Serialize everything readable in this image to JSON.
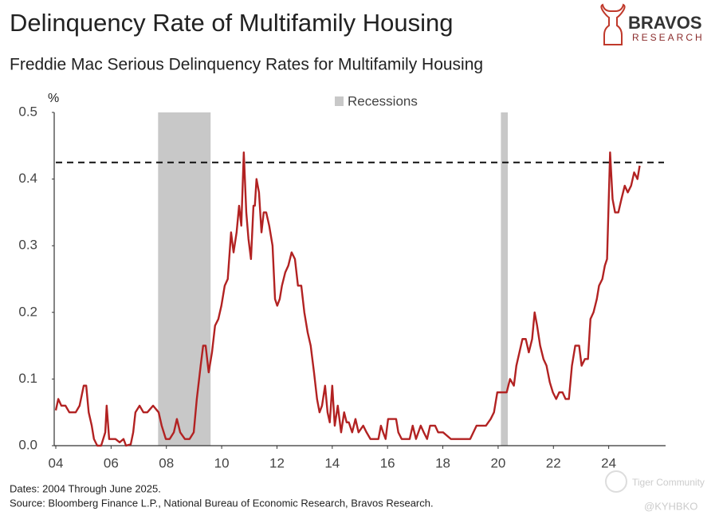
{
  "chart_data": {
    "type": "line",
    "title": "Delinquency Rate of Multifamily Housing",
    "subtitle": "Freddie Mac Serious Delinquency Rates for Multifamily Housing",
    "y_label": "%",
    "legend_label": "Recessions",
    "recession_color": "#c8c8c8",
    "recessions": [
      {
        "start": 2007.7,
        "end": 2009.6
      },
      {
        "start": 2020.1,
        "end": 2020.35
      }
    ],
    "reference_line": {
      "value": 0.425,
      "style": "dashed"
    },
    "footnote": "Dates: 2004 Through June 2025.",
    "source": "Source: Bloomberg Finance L.P., National Bureau of Economic Research, Bravos Research.",
    "brand": "BRAVOS",
    "brand_sub": "RESEARCH",
    "watermark": "Tiger Community",
    "watermark_user": "@KYHBKO",
    "xlim": [
      2004,
      2026
    ],
    "xticks": [
      {
        "value": 2004,
        "label": "04"
      },
      {
        "value": 2006,
        "label": "06"
      },
      {
        "value": 2008,
        "label": "08"
      },
      {
        "value": 2010,
        "label": "10"
      },
      {
        "value": 2012,
        "label": "12"
      },
      {
        "value": 2014,
        "label": "14"
      },
      {
        "value": 2016,
        "label": "16"
      },
      {
        "value": 2018,
        "label": "18"
      },
      {
        "value": 2020,
        "label": "20"
      },
      {
        "value": 2022,
        "label": "22"
      },
      {
        "value": 2024,
        "label": "24"
      }
    ],
    "ylim": [
      0,
      0.5
    ],
    "yticks": [
      {
        "value": 0,
        "label": "0.0"
      },
      0.1,
      0.2,
      0.3,
      0.4,
      0.5
    ],
    "grid": false,
    "x": [
      2004.0,
      2004.09,
      2004.2,
      2004.35,
      2004.49,
      2004.72,
      2004.86,
      2005.01,
      2005.1,
      2005.19,
      2005.3,
      2005.38,
      2005.5,
      2005.64,
      2005.79,
      2005.84,
      2005.93,
      2006.02,
      2006.16,
      2006.31,
      2006.45,
      2006.54,
      2006.71,
      2006.8,
      2006.88,
      2007.03,
      2007.17,
      2007.31,
      2007.52,
      2007.72,
      2007.83,
      2007.98,
      2008.12,
      2008.27,
      2008.38,
      2008.5,
      2008.67,
      2008.84,
      2008.99,
      2009.1,
      2009.24,
      2009.33,
      2009.42,
      2009.53,
      2009.65,
      2009.76,
      2009.88,
      2009.99,
      2010.11,
      2010.22,
      2010.34,
      2010.43,
      2010.54,
      2010.63,
      2010.71,
      2010.8,
      2010.89,
      2010.97,
      2011.06,
      2011.15,
      2011.2,
      2011.26,
      2011.35,
      2011.44,
      2011.52,
      2011.61,
      2011.72,
      2011.84,
      2011.93,
      2012.01,
      2012.1,
      2012.18,
      2012.3,
      2012.41,
      2012.53,
      2012.65,
      2012.76,
      2012.88,
      2012.99,
      2013.11,
      2013.22,
      2013.34,
      2013.45,
      2013.54,
      2013.63,
      2013.74,
      2013.83,
      2013.91,
      2014.0,
      2014.09,
      2014.2,
      2014.32,
      2014.43,
      2014.52,
      2014.6,
      2014.72,
      2014.84,
      2014.95,
      2015.12,
      2015.24,
      2015.38,
      2015.53,
      2015.67,
      2015.76,
      2015.84,
      2015.93,
      2016.02,
      2016.16,
      2016.31,
      2016.39,
      2016.51,
      2016.62,
      2016.8,
      2016.91,
      2017.03,
      2017.2,
      2017.31,
      2017.43,
      2017.54,
      2017.72,
      2017.83,
      2018.01,
      2018.29,
      2018.7,
      2018.99,
      2019.22,
      2019.39,
      2019.56,
      2019.73,
      2019.85,
      2019.97,
      2020.2,
      2020.31,
      2020.43,
      2020.57,
      2020.66,
      2020.77,
      2020.88,
      2021.0,
      2021.11,
      2021.23,
      2021.32,
      2021.41,
      2021.52,
      2021.64,
      2021.75,
      2021.87,
      2021.98,
      2022.1,
      2022.21,
      2022.33,
      2022.44,
      2022.56,
      2022.67,
      2022.79,
      2022.93,
      2023.02,
      2023.14,
      2023.25,
      2023.34,
      2023.45,
      2023.57,
      2023.65,
      2023.77,
      2023.86,
      2023.94,
      2024.05,
      2024.14,
      2024.23,
      2024.35,
      2024.46,
      2024.58,
      2024.69,
      2024.81,
      2024.92,
      2025.04,
      2025.12
    ],
    "series": [
      {
        "color": "#b22222",
        "values": [
          0.053,
          0.07,
          0.06,
          0.06,
          0.05,
          0.05,
          0.06,
          0.09,
          0.09,
          0.05,
          0.03,
          0.01,
          0,
          0,
          0.02,
          0.06,
          0.01,
          0.01,
          0.01,
          0.005,
          0.01,
          0,
          0.002,
          0.02,
          0.05,
          0.06,
          0.05,
          0.05,
          0.06,
          0.05,
          0.03,
          0.01,
          0.01,
          0.02,
          0.04,
          0.02,
          0.01,
          0.01,
          0.02,
          0.07,
          0.12,
          0.15,
          0.15,
          0.11,
          0.14,
          0.18,
          0.19,
          0.21,
          0.24,
          0.25,
          0.32,
          0.29,
          0.32,
          0.36,
          0.33,
          0.44,
          0.35,
          0.31,
          0.28,
          0.36,
          0.36,
          0.4,
          0.38,
          0.32,
          0.35,
          0.35,
          0.33,
          0.3,
          0.22,
          0.21,
          0.22,
          0.24,
          0.26,
          0.27,
          0.29,
          0.28,
          0.24,
          0.24,
          0.2,
          0.17,
          0.15,
          0.11,
          0.07,
          0.05,
          0.06,
          0.09,
          0.05,
          0.035,
          0.09,
          0.03,
          0.06,
          0.02,
          0.05,
          0.035,
          0.035,
          0.02,
          0.04,
          0.02,
          0.03,
          0.02,
          0.01,
          0.01,
          0.01,
          0.03,
          0.02,
          0.01,
          0.04,
          0.04,
          0.04,
          0.02,
          0.01,
          0.01,
          0.01,
          0.03,
          0.01,
          0.03,
          0.02,
          0.01,
          0.03,
          0.03,
          0.02,
          0.02,
          0.01,
          0.01,
          0.01,
          0.03,
          0.03,
          0.03,
          0.04,
          0.05,
          0.08,
          0.08,
          0.08,
          0.1,
          0.09,
          0.12,
          0.14,
          0.16,
          0.16,
          0.14,
          0.16,
          0.2,
          0.18,
          0.15,
          0.13,
          0.12,
          0.095,
          0.08,
          0.07,
          0.08,
          0.08,
          0.07,
          0.07,
          0.12,
          0.15,
          0.15,
          0.12,
          0.13,
          0.13,
          0.19,
          0.2,
          0.22,
          0.24,
          0.25,
          0.27,
          0.28,
          0.44,
          0.37,
          0.35,
          0.35,
          0.37,
          0.39,
          0.38,
          0.39,
          0.41,
          0.4,
          0.42
        ]
      }
    ]
  }
}
